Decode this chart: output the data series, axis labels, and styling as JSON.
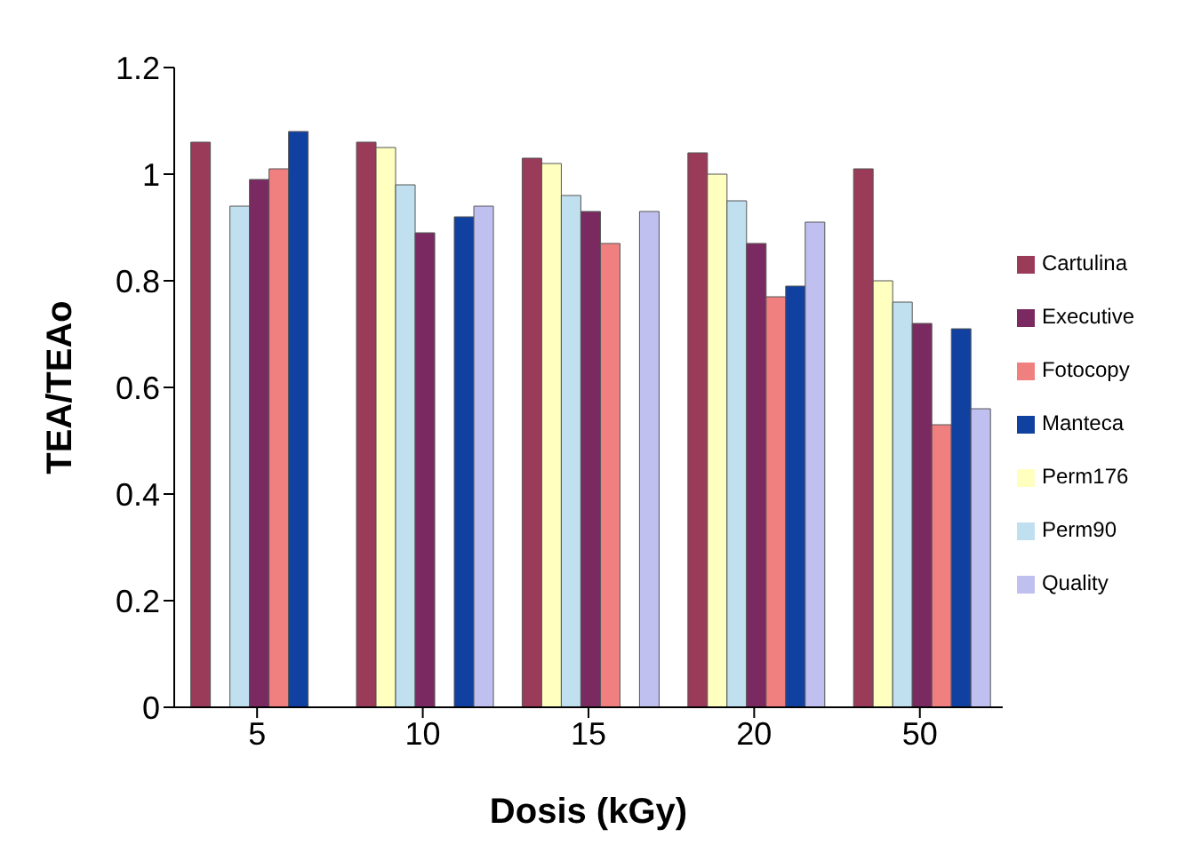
{
  "chart_data": {
    "type": "bar",
    "xlabel": "Dosis (kGy)",
    "ylabel": "TEA/TEAo",
    "categories": [
      "5",
      "10",
      "15",
      "20",
      "50"
    ],
    "series": [
      {
        "name": "Cartulina",
        "color": "#9b3b5a",
        "values": [
          1.06,
          1.06,
          1.03,
          1.04,
          1.01
        ]
      },
      {
        "name": "Perm176",
        "color": "#ffffc0",
        "values": [
          null,
          1.05,
          1.02,
          1.0,
          0.8
        ]
      },
      {
        "name": "Perm90",
        "color": "#c0e0f0",
        "values": [
          0.94,
          0.98,
          0.96,
          0.95,
          0.76
        ]
      },
      {
        "name": "Executive",
        "color": "#7a2a60",
        "values": [
          0.99,
          0.89,
          0.93,
          0.87,
          0.72
        ]
      },
      {
        "name": "Fotocopy",
        "color": "#f08080",
        "values": [
          1.01,
          null,
          0.87,
          0.77,
          0.53
        ]
      },
      {
        "name": "Manteca",
        "color": "#1040a0",
        "values": [
          1.08,
          0.92,
          null,
          0.79,
          0.71
        ]
      },
      {
        "name": "Quality",
        "color": "#c0c0f0",
        "values": [
          null,
          0.94,
          0.93,
          0.91,
          0.56
        ]
      }
    ],
    "ylim": [
      0,
      1.2
    ],
    "yticks": [
      0,
      0.2,
      0.4,
      0.6,
      0.8,
      1,
      1.2
    ],
    "grid": false,
    "legend": "right"
  }
}
